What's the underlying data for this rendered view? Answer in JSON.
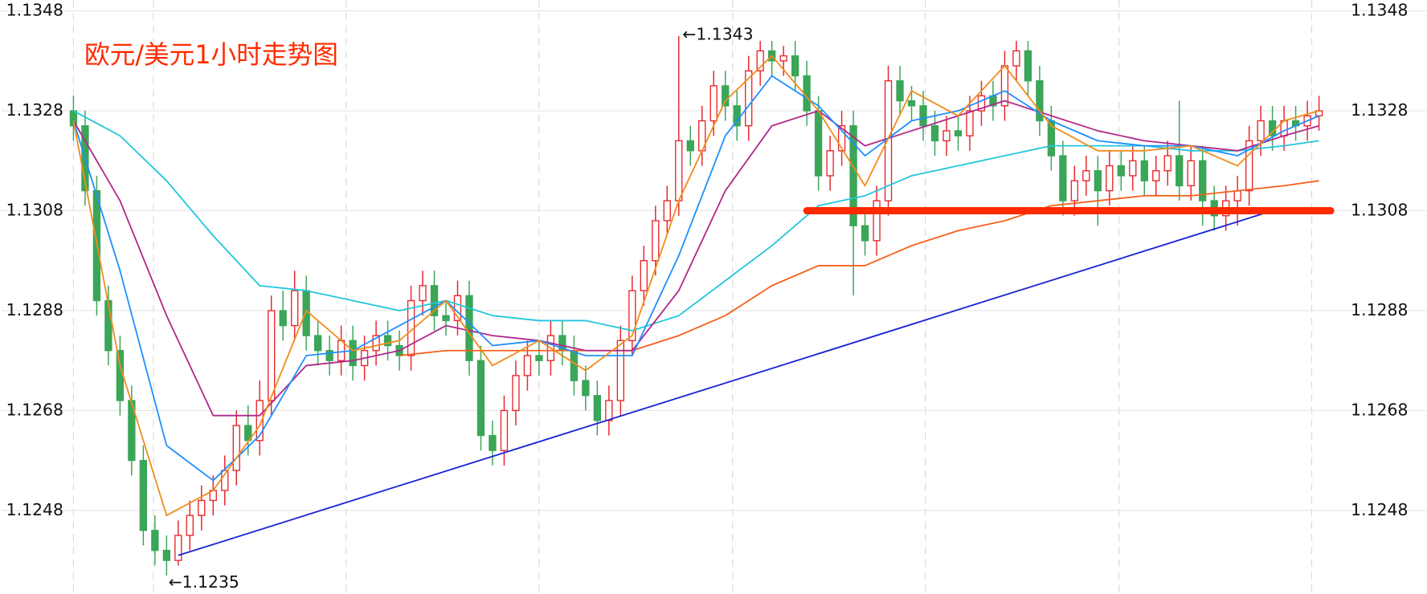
{
  "chart_data": {
    "type": "candlestick",
    "title": "欧元/美元1小时走势图",
    "ylim": [
      1.1231,
      1.135
    ],
    "yticks": [
      1.1248,
      1.1268,
      1.1288,
      1.1308,
      1.1328,
      1.1348
    ],
    "grid": true,
    "up_color": "#e8262a",
    "down_color": "#3ba558",
    "title_color": "#ff2a00",
    "annotations": [
      "←1.1343",
      "←1.1235"
    ],
    "ohlc": [
      [
        1.1328,
        1.1331,
        1.1322,
        1.1325
      ],
      [
        1.1325,
        1.1328,
        1.1309,
        1.1312
      ],
      [
        1.1312,
        1.1315,
        1.1287,
        1.129
      ],
      [
        1.129,
        1.1293,
        1.1277,
        1.128
      ],
      [
        1.128,
        1.1283,
        1.1267,
        1.127
      ],
      [
        1.127,
        1.1273,
        1.1255,
        1.1258
      ],
      [
        1.1258,
        1.1261,
        1.1241,
        1.1244
      ],
      [
        1.1244,
        1.1247,
        1.1237,
        1.124
      ],
      [
        1.124,
        1.1243,
        1.1235,
        1.1238
      ],
      [
        1.1238,
        1.1246,
        1.1237,
        1.1243
      ],
      [
        1.1243,
        1.125,
        1.124,
        1.1247
      ],
      [
        1.1247,
        1.1253,
        1.1244,
        1.125
      ],
      [
        1.125,
        1.1255,
        1.1247,
        1.1252
      ],
      [
        1.1252,
        1.1259,
        1.1249,
        1.1256
      ],
      [
        1.1256,
        1.1268,
        1.1253,
        1.1265
      ],
      [
        1.1265,
        1.1269,
        1.1259,
        1.1262
      ],
      [
        1.1262,
        1.1274,
        1.1259,
        1.127
      ],
      [
        1.127,
        1.1291,
        1.1267,
        1.1288
      ],
      [
        1.1288,
        1.1292,
        1.1282,
        1.1285
      ],
      [
        1.1285,
        1.1296,
        1.1282,
        1.1292
      ],
      [
        1.1292,
        1.1295,
        1.128,
        1.1283
      ],
      [
        1.1283,
        1.1286,
        1.1277,
        1.128
      ],
      [
        1.128,
        1.1283,
        1.1275,
        1.1278
      ],
      [
        1.1278,
        1.1285,
        1.1275,
        1.1282
      ],
      [
        1.1282,
        1.1285,
        1.1274,
        1.1277
      ],
      [
        1.1277,
        1.1283,
        1.1274,
        1.128
      ],
      [
        1.128,
        1.1286,
        1.1277,
        1.1283
      ],
      [
        1.1283,
        1.1286,
        1.1278,
        1.1281
      ],
      [
        1.1281,
        1.1284,
        1.1276,
        1.1279
      ],
      [
        1.1279,
        1.1293,
        1.1276,
        1.129
      ],
      [
        1.129,
        1.1296,
        1.1287,
        1.1293
      ],
      [
        1.1293,
        1.1296,
        1.1284,
        1.1287
      ],
      [
        1.1287,
        1.129,
        1.1283,
        1.1286
      ],
      [
        1.1286,
        1.1294,
        1.1283,
        1.1291
      ],
      [
        1.1291,
        1.1294,
        1.1275,
        1.1278
      ],
      [
        1.1278,
        1.1281,
        1.126,
        1.1263
      ],
      [
        1.1263,
        1.1266,
        1.1257,
        1.126
      ],
      [
        1.126,
        1.1271,
        1.1257,
        1.1268
      ],
      [
        1.1268,
        1.1278,
        1.1265,
        1.1275
      ],
      [
        1.1275,
        1.1282,
        1.1272,
        1.1279
      ],
      [
        1.1279,
        1.1282,
        1.1275,
        1.1278
      ],
      [
        1.1278,
        1.1286,
        1.1275,
        1.1283
      ],
      [
        1.1283,
        1.1286,
        1.1277,
        1.128
      ],
      [
        1.128,
        1.1283,
        1.1271,
        1.1274
      ],
      [
        1.1274,
        1.1277,
        1.1268,
        1.1271
      ],
      [
        1.1271,
        1.1274,
        1.1263,
        1.1266
      ],
      [
        1.1266,
        1.1273,
        1.1263,
        1.127
      ],
      [
        1.127,
        1.1285,
        1.1267,
        1.1282
      ],
      [
        1.1282,
        1.1295,
        1.1279,
        1.1292
      ],
      [
        1.1292,
        1.1301,
        1.1289,
        1.1298
      ],
      [
        1.1298,
        1.1309,
        1.1295,
        1.1306
      ],
      [
        1.1306,
        1.1313,
        1.1303,
        1.131
      ],
      [
        1.131,
        1.1343,
        1.1307,
        1.1322
      ],
      [
        1.1322,
        1.1325,
        1.1317,
        1.132
      ],
      [
        1.132,
        1.1329,
        1.1317,
        1.1326
      ],
      [
        1.1326,
        1.1336,
        1.1323,
        1.1333
      ],
      [
        1.1333,
        1.1336,
        1.1326,
        1.1329
      ],
      [
        1.1329,
        1.1332,
        1.1322,
        1.1325
      ],
      [
        1.1325,
        1.1339,
        1.1322,
        1.1336
      ],
      [
        1.1336,
        1.1342,
        1.1333,
        1.134
      ],
      [
        1.134,
        1.1342,
        1.1335,
        1.1338
      ],
      [
        1.1338,
        1.1341,
        1.1335,
        1.1339
      ],
      [
        1.1339,
        1.1342,
        1.1332,
        1.1335
      ],
      [
        1.1335,
        1.1338,
        1.1325,
        1.1328
      ],
      [
        1.1328,
        1.1331,
        1.1312,
        1.1315
      ],
      [
        1.1315,
        1.1323,
        1.1312,
        1.132
      ],
      [
        1.132,
        1.1328,
        1.1317,
        1.1325
      ],
      [
        1.1325,
        1.1328,
        1.1291,
        1.1305
      ],
      [
        1.1305,
        1.1308,
        1.1299,
        1.1302
      ],
      [
        1.1302,
        1.1313,
        1.1299,
        1.131
      ],
      [
        1.131,
        1.1337,
        1.1307,
        1.1334
      ],
      [
        1.1334,
        1.1337,
        1.1327,
        1.133
      ],
      [
        1.133,
        1.1333,
        1.1326,
        1.1329
      ],
      [
        1.1329,
        1.1332,
        1.1322,
        1.1325
      ],
      [
        1.1325,
        1.1328,
        1.1319,
        1.1322
      ],
      [
        1.1322,
        1.1327,
        1.1319,
        1.1324
      ],
      [
        1.1324,
        1.1327,
        1.132,
        1.1323
      ],
      [
        1.1323,
        1.1331,
        1.132,
        1.1328
      ],
      [
        1.1328,
        1.1334,
        1.1325,
        1.1331
      ],
      [
        1.1331,
        1.1334,
        1.1326,
        1.1329
      ],
      [
        1.1329,
        1.134,
        1.1326,
        1.1337
      ],
      [
        1.1337,
        1.1342,
        1.1334,
        1.134
      ],
      [
        1.134,
        1.1342,
        1.1331,
        1.1334
      ],
      [
        1.1334,
        1.1337,
        1.1323,
        1.1326
      ],
      [
        1.1326,
        1.1329,
        1.1316,
        1.1319
      ],
      [
        1.1319,
        1.1322,
        1.1307,
        1.131
      ],
      [
        1.131,
        1.1317,
        1.1307,
        1.1314
      ],
      [
        1.1314,
        1.1319,
        1.1311,
        1.1316
      ],
      [
        1.1316,
        1.1319,
        1.1305,
        1.1312
      ],
      [
        1.1312,
        1.132,
        1.1309,
        1.1317
      ],
      [
        1.1317,
        1.132,
        1.1312,
        1.1315
      ],
      [
        1.1315,
        1.1321,
        1.1312,
        1.1318
      ],
      [
        1.1318,
        1.1321,
        1.1311,
        1.1314
      ],
      [
        1.1314,
        1.1319,
        1.1311,
        1.1316
      ],
      [
        1.1316,
        1.1322,
        1.1313,
        1.1319
      ],
      [
        1.1319,
        1.133,
        1.131,
        1.1313
      ],
      [
        1.1313,
        1.1321,
        1.131,
        1.1318
      ],
      [
        1.1318,
        1.1321,
        1.1305,
        1.131
      ],
      [
        1.131,
        1.1313,
        1.1304,
        1.1307
      ],
      [
        1.1307,
        1.1313,
        1.1304,
        1.131
      ],
      [
        1.131,
        1.1315,
        1.1305,
        1.1312
      ],
      [
        1.1312,
        1.1325,
        1.1309,
        1.1322
      ],
      [
        1.1322,
        1.1329,
        1.1319,
        1.1326
      ],
      [
        1.1326,
        1.1329,
        1.132,
        1.1323
      ],
      [
        1.1323,
        1.1329,
        1.132,
        1.1326
      ],
      [
        1.1326,
        1.1329,
        1.1322,
        1.1325
      ],
      [
        1.1325,
        1.133,
        1.1322,
        1.1327
      ],
      [
        1.1327,
        1.1331,
        1.1324,
        1.1328
      ]
    ],
    "moving_averages": [
      {
        "color": "#22c6dc",
        "x": [
          0,
          4,
          8,
          12,
          16,
          20,
          24,
          28,
          32,
          36,
          40,
          44,
          48,
          52,
          56,
          60,
          64,
          68,
          72,
          76,
          80,
          84,
          88,
          92,
          96,
          100,
          104,
          107
        ],
        "values": [
          1.1328,
          1.1323,
          1.1314,
          1.1303,
          1.1293,
          1.1292,
          1.129,
          1.1288,
          1.129,
          1.1287,
          1.1286,
          1.1286,
          1.1284,
          1.1287,
          1.1294,
          1.1301,
          1.1309,
          1.1311,
          1.1315,
          1.1317,
          1.1319,
          1.1321,
          1.1321,
          1.1321,
          1.132,
          1.132,
          1.1321,
          1.1322
        ]
      },
      {
        "color": "#f5601c",
        "x": [
          28,
          32,
          36,
          40,
          44,
          48,
          52,
          56,
          60,
          64,
          68,
          72,
          76,
          80,
          84,
          88,
          92,
          96,
          100,
          104,
          107
        ],
        "values": [
          1.1279,
          1.128,
          1.128,
          1.128,
          1.128,
          1.128,
          1.1283,
          1.1287,
          1.1293,
          1.1297,
          1.1297,
          1.1301,
          1.1304,
          1.1306,
          1.1309,
          1.131,
          1.1311,
          1.1311,
          1.1312,
          1.1313,
          1.1314
        ]
      },
      {
        "color": "#b0288c",
        "x": [
          0,
          4,
          8,
          12,
          16,
          20,
          24,
          28,
          32,
          36,
          40,
          44,
          48,
          52,
          56,
          60,
          64,
          68,
          72,
          76,
          80,
          84,
          88,
          92,
          96,
          100,
          104,
          107
        ],
        "values": [
          1.1326,
          1.131,
          1.1287,
          1.1267,
          1.1267,
          1.1277,
          1.1278,
          1.128,
          1.1285,
          1.1283,
          1.1282,
          1.128,
          1.128,
          1.1292,
          1.1312,
          1.1325,
          1.1328,
          1.1321,
          1.1324,
          1.1327,
          1.133,
          1.1327,
          1.1324,
          1.1322,
          1.1321,
          1.132,
          1.1323,
          1.1325
        ]
      },
      {
        "color": "#1e90ff",
        "x": [
          0,
          4,
          8,
          12,
          16,
          20,
          24,
          28,
          32,
          36,
          40,
          44,
          48,
          52,
          56,
          60,
          64,
          68,
          72,
          76,
          80,
          84,
          88,
          92,
          96,
          100,
          104,
          107
        ],
        "values": [
          1.1326,
          1.1296,
          1.1261,
          1.1254,
          1.1263,
          1.1279,
          1.128,
          1.1285,
          1.129,
          1.1281,
          1.1282,
          1.1279,
          1.1279,
          1.1299,
          1.1323,
          1.1335,
          1.1329,
          1.1319,
          1.1326,
          1.1328,
          1.1332,
          1.1326,
          1.1322,
          1.1321,
          1.1321,
          1.1319,
          1.1324,
          1.1327
        ]
      },
      {
        "color": "#f28c1c",
        "x": [
          0,
          4,
          8,
          12,
          16,
          20,
          24,
          28,
          32,
          36,
          40,
          44,
          48,
          52,
          56,
          60,
          64,
          68,
          72,
          76,
          80,
          84,
          88,
          92,
          96,
          100,
          104,
          107
        ],
        "values": [
          1.1326,
          1.1277,
          1.1247,
          1.1252,
          1.1265,
          1.1288,
          1.128,
          1.1282,
          1.129,
          1.1277,
          1.1282,
          1.1276,
          1.1283,
          1.131,
          1.133,
          1.1339,
          1.1328,
          1.1313,
          1.1332,
          1.1327,
          1.1337,
          1.1325,
          1.132,
          1.132,
          1.1321,
          1.1317,
          1.1326,
          1.1328
        ]
      }
    ],
    "trend_line": {
      "color": "#1a22d6",
      "x": [
        9,
        103
      ],
      "values": [
        1.1239,
        1.1308
      ]
    },
    "support_line": {
      "color": "#ff2a00",
      "x": [
        63,
        108
      ],
      "values": [
        1.1308,
        1.1308
      ]
    }
  }
}
